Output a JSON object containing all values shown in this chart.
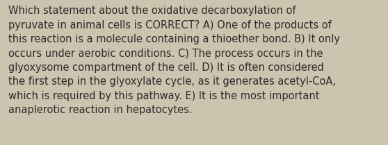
{
  "background_color": "#ccc4af",
  "text_color": "#2b2b2b",
  "lines": [
    "Which statement about the oxidative decarboxylation of",
    "pyruvate in animal cells is CORRECT? A) One of the products of",
    "this reaction is a molecule containing a thioether bond. B) It only",
    "occurs under aerobic conditions. C) The process occurs in the",
    "glyoxysome compartment of the cell. D) It is often considered",
    "the first step in the glyoxylate cycle, as it generates acetyl-CoA,",
    "which is required by this pathway. E) It is the most important",
    "anaplerotic reaction in hepatocytes."
  ],
  "font_size": 10.5,
  "fig_width": 5.58,
  "fig_height": 2.09,
  "dpi": 100
}
